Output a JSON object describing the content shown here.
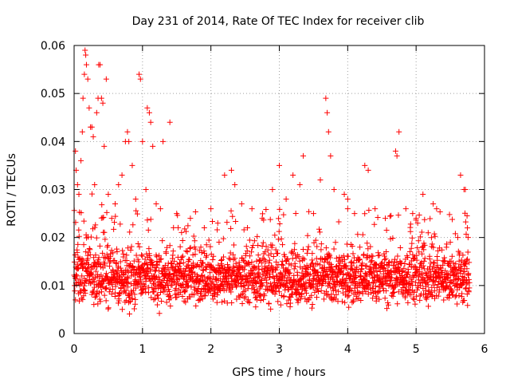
{
  "chart_data": {
    "type": "scatter",
    "title": "Day 231 of 2014, Rate Of TEC Index for receiver clib",
    "xlabel": "GPS time / hours",
    "ylabel": "ROTI / TECUs",
    "xlim": [
      0,
      6
    ],
    "ylim": [
      0,
      0.06
    ],
    "x_ticks": [
      0,
      1,
      2,
      3,
      4,
      5,
      6
    ],
    "x_tick_labels": [
      "0",
      "1",
      "2",
      "3",
      "4",
      "5",
      "6"
    ],
    "y_ticks": [
      0,
      0.01,
      0.02,
      0.03,
      0.04,
      0.05,
      0.06
    ],
    "y_tick_labels": [
      "0",
      "0.01",
      "0.02",
      "0.03",
      "0.04",
      "0.05",
      "0.06"
    ],
    "grid": true,
    "marker": "+",
    "series_color": "#ff0000",
    "x_data_range": [
      0,
      5.78
    ],
    "series": [
      {
        "name": "ROTI",
        "highlights": [
          [
            0.02,
            0.038
          ],
          [
            0.03,
            0.034
          ],
          [
            0.05,
            0.031
          ],
          [
            0.07,
            0.029
          ],
          [
            0.1,
            0.036
          ],
          [
            0.12,
            0.042
          ],
          [
            0.13,
            0.049
          ],
          [
            0.15,
            0.054
          ],
          [
            0.16,
            0.059
          ],
          [
            0.17,
            0.058
          ],
          [
            0.18,
            0.056
          ],
          [
            0.2,
            0.053
          ],
          [
            0.22,
            0.047
          ],
          [
            0.24,
            0.043
          ],
          [
            0.26,
            0.043
          ],
          [
            0.28,
            0.041
          ],
          [
            0.3,
            0.031
          ],
          [
            0.33,
            0.046
          ],
          [
            0.35,
            0.049
          ],
          [
            0.36,
            0.056
          ],
          [
            0.38,
            0.056
          ],
          [
            0.4,
            0.049
          ],
          [
            0.42,
            0.048
          ],
          [
            0.44,
            0.039
          ],
          [
            0.47,
            0.053
          ],
          [
            0.5,
            0.029
          ],
          [
            0.55,
            0.024
          ],
          [
            0.6,
            0.027
          ],
          [
            0.65,
            0.031
          ],
          [
            0.7,
            0.033
          ],
          [
            0.75,
            0.04
          ],
          [
            0.78,
            0.042
          ],
          [
            0.8,
            0.04
          ],
          [
            0.85,
            0.035
          ],
          [
            0.9,
            0.028
          ],
          [
            0.95,
            0.054
          ],
          [
            0.97,
            0.053
          ],
          [
            1.0,
            0.04
          ],
          [
            1.05,
            0.03
          ],
          [
            1.07,
            0.047
          ],
          [
            1.1,
            0.046
          ],
          [
            1.12,
            0.044
          ],
          [
            1.15,
            0.039
          ],
          [
            1.2,
            0.027
          ],
          [
            1.3,
            0.04
          ],
          [
            1.4,
            0.044
          ],
          [
            1.5,
            0.025
          ],
          [
            1.7,
            0.024
          ],
          [
            2.0,
            0.026
          ],
          [
            2.1,
            0.023
          ],
          [
            2.2,
            0.033
          ],
          [
            2.3,
            0.034
          ],
          [
            2.35,
            0.031
          ],
          [
            2.45,
            0.027
          ],
          [
            2.6,
            0.026
          ],
          [
            2.75,
            0.024
          ],
          [
            2.9,
            0.03
          ],
          [
            3.0,
            0.035
          ],
          [
            3.1,
            0.028
          ],
          [
            3.2,
            0.033
          ],
          [
            3.3,
            0.031
          ],
          [
            3.35,
            0.037
          ],
          [
            3.5,
            0.025
          ],
          [
            3.6,
            0.032
          ],
          [
            3.68,
            0.049
          ],
          [
            3.7,
            0.046
          ],
          [
            3.72,
            0.042
          ],
          [
            3.75,
            0.037
          ],
          [
            3.8,
            0.03
          ],
          [
            3.95,
            0.029
          ],
          [
            4.0,
            0.028
          ],
          [
            4.1,
            0.025
          ],
          [
            4.25,
            0.035
          ],
          [
            4.3,
            0.034
          ],
          [
            4.4,
            0.026
          ],
          [
            4.55,
            0.024
          ],
          [
            4.7,
            0.038
          ],
          [
            4.72,
            0.037
          ],
          [
            4.75,
            0.042
          ],
          [
            4.85,
            0.026
          ],
          [
            4.95,
            0.025
          ],
          [
            5.0,
            0.024
          ],
          [
            5.1,
            0.029
          ],
          [
            5.25,
            0.027
          ],
          [
            5.3,
            0.026
          ],
          [
            5.5,
            0.019
          ],
          [
            5.65,
            0.033
          ],
          [
            5.7,
            0.03
          ],
          [
            5.72,
            0.03
          ],
          [
            5.75,
            0.022
          ],
          [
            5.76,
            0.02
          ]
        ]
      }
    ]
  }
}
